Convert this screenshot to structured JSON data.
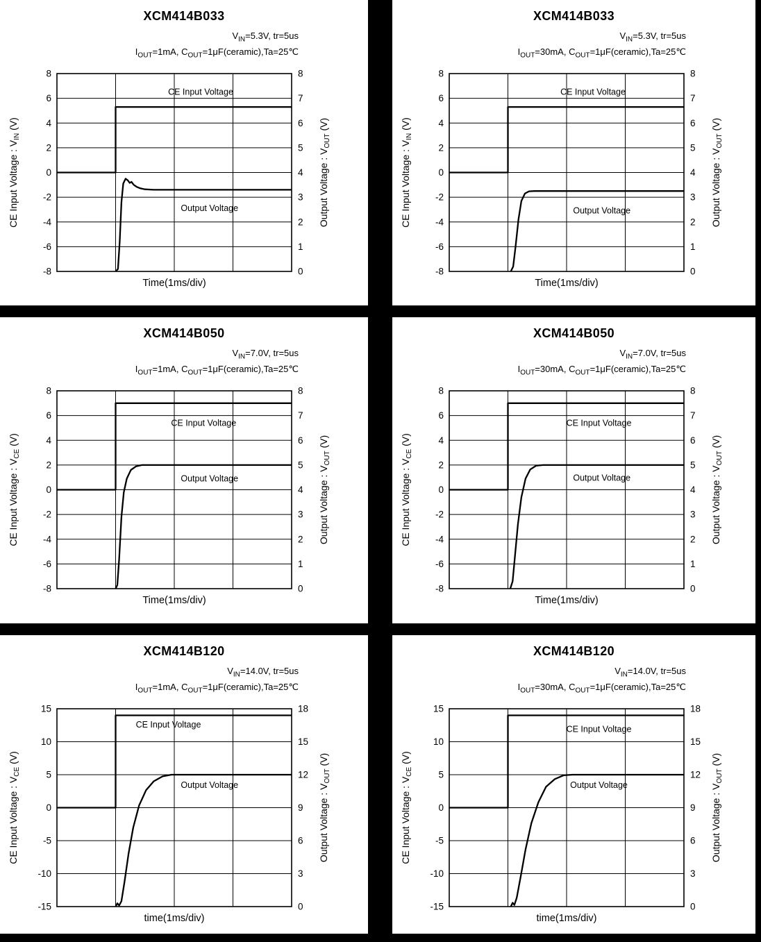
{
  "page": {
    "background": "#000000",
    "panel_background": "#ffffff",
    "trace_color": "#000000"
  },
  "chart_data": [
    {
      "title": "XCM414B033",
      "type": "line",
      "conditions": [
        "V~IN~=5.3V, tr=5us",
        "I~OUT~=1mA, C~OUT~=1μF(ceramic),Ta=25℃"
      ],
      "x_axis": {
        "label": "Time(1ms/div)",
        "divisions": 4,
        "div_unit": "1ms/div"
      },
      "grid_cols": 4,
      "grid_rows": 8,
      "left_axis": {
        "label": "CE Input Voltage : V~IN~ (V)",
        "range": [
          -8,
          8
        ],
        "ticks": [
          8,
          6,
          4,
          2,
          0,
          -2,
          -4,
          -6,
          -8
        ]
      },
      "right_axis": {
        "label": "Output Voltage : V~OUT~ (V)",
        "range": [
          0,
          8
        ],
        "ticks": [
          8,
          7,
          6,
          5,
          4,
          3,
          2,
          1,
          0
        ]
      },
      "series": [
        {
          "name": "CE Input Voltage",
          "axis": "left",
          "label_pos": [
            2.45,
            6.5
          ],
          "points": [
            [
              0,
              0
            ],
            [
              1,
              0
            ],
            [
              1,
              5.3
            ],
            [
              4,
              5.3
            ]
          ]
        },
        {
          "name": "Output Voltage",
          "axis": "right",
          "label_pos": [
            2.6,
            -2.9
          ],
          "points": [
            [
              1.0,
              0
            ],
            [
              1.04,
              0.1
            ],
            [
              1.07,
              1.2
            ],
            [
              1.1,
              2.8
            ],
            [
              1.13,
              3.55
            ],
            [
              1.17,
              3.75
            ],
            [
              1.21,
              3.68
            ],
            [
              1.24,
              3.58
            ],
            [
              1.27,
              3.62
            ],
            [
              1.31,
              3.5
            ],
            [
              1.36,
              3.42
            ],
            [
              1.42,
              3.36
            ],
            [
              1.5,
              3.32
            ],
            [
              1.65,
              3.3
            ],
            [
              4,
              3.3
            ]
          ]
        }
      ]
    },
    {
      "title": "XCM414B033",
      "type": "line",
      "conditions": [
        "V~IN~=5.3V, tr=5us",
        "I~OUT~=30mA, C~OUT~=1μF(ceramic),Ta=25℃"
      ],
      "x_axis": {
        "label": "Time(1ms/div)",
        "divisions": 4,
        "div_unit": "1ms/div"
      },
      "grid_cols": 4,
      "grid_rows": 8,
      "left_axis": {
        "label": "CE Input Voltage : V~IN~ (V)",
        "range": [
          -8,
          8
        ],
        "ticks": [
          8,
          6,
          4,
          2,
          0,
          -2,
          -4,
          -6,
          -8
        ]
      },
      "right_axis": {
        "label": "Output Voltage : V~OUT~ (V)",
        "range": [
          0,
          8
        ],
        "ticks": [
          8,
          7,
          6,
          5,
          4,
          3,
          2,
          1,
          0
        ]
      },
      "series": [
        {
          "name": "CE Input Voltage",
          "axis": "left",
          "label_pos": [
            2.45,
            6.5
          ],
          "points": [
            [
              0,
              0
            ],
            [
              1,
              0
            ],
            [
              1,
              5.3
            ],
            [
              4,
              5.3
            ]
          ]
        },
        {
          "name": "Output Voltage",
          "axis": "right",
          "label_pos": [
            2.6,
            -3.1
          ],
          "points": [
            [
              1.05,
              0
            ],
            [
              1.09,
              0.2
            ],
            [
              1.13,
              1.0
            ],
            [
              1.18,
              2.1
            ],
            [
              1.23,
              2.85
            ],
            [
              1.29,
              3.15
            ],
            [
              1.36,
              3.24
            ],
            [
              1.45,
              3.25
            ],
            [
              4,
              3.25
            ]
          ]
        }
      ]
    },
    {
      "title": "XCM414B050",
      "type": "line",
      "conditions": [
        "V~IN~=7.0V, tr=5us",
        "I~OUT~=1mA, C~OUT~=1μF(ceramic),Ta=25℃"
      ],
      "x_axis": {
        "label": "Time(1ms/div)",
        "divisions": 4,
        "div_unit": "1ms/div"
      },
      "grid_cols": 4,
      "grid_rows": 8,
      "left_axis": {
        "label": "CE Input Voltage : V~CE~ (V)",
        "range": [
          -8,
          8
        ],
        "ticks": [
          8,
          6,
          4,
          2,
          0,
          -2,
          -4,
          -6,
          -8
        ]
      },
      "right_axis": {
        "label": "Output Voltage : V~OUT~ (V)",
        "range": [
          0,
          8
        ],
        "ticks": [
          8,
          7,
          6,
          5,
          4,
          3,
          2,
          1,
          0
        ]
      },
      "series": [
        {
          "name": "CE Input Voltage",
          "axis": "left",
          "label_pos": [
            2.5,
            5.4
          ],
          "points": [
            [
              0,
              0
            ],
            [
              1,
              0
            ],
            [
              1,
              7.0
            ],
            [
              4,
              7.0
            ]
          ]
        },
        {
          "name": "Output Voltage",
          "axis": "right",
          "label_pos": [
            2.6,
            0.9
          ],
          "points": [
            [
              1.0,
              0
            ],
            [
              1.03,
              0.15
            ],
            [
              1.06,
              1.2
            ],
            [
              1.1,
              2.9
            ],
            [
              1.14,
              3.9
            ],
            [
              1.19,
              4.45
            ],
            [
              1.26,
              4.8
            ],
            [
              1.35,
              4.95
            ],
            [
              1.45,
              5.0
            ],
            [
              4,
              5.0
            ]
          ]
        }
      ]
    },
    {
      "title": "XCM414B050",
      "type": "line",
      "conditions": [
        "V~IN~=7.0V, tr=5us",
        "I~OUT~=30mA, C~OUT~=1μF(ceramic),Ta=25℃"
      ],
      "x_axis": {
        "label": "Time(1ms/div)",
        "divisions": 4,
        "div_unit": "1ms/div"
      },
      "grid_cols": 4,
      "grid_rows": 8,
      "left_axis": {
        "label": "CE Input Voltage : V~CE~ (V)",
        "range": [
          -8,
          8
        ],
        "ticks": [
          8,
          6,
          4,
          2,
          0,
          -2,
          -4,
          -6,
          -8
        ]
      },
      "right_axis": {
        "label": "Output Voltage : V~OUT~ (V)",
        "range": [
          0,
          8
        ],
        "ticks": [
          8,
          7,
          6,
          5,
          4,
          3,
          2,
          1,
          0
        ]
      },
      "series": [
        {
          "name": "CE Input Voltage",
          "axis": "left",
          "label_pos": [
            2.55,
            5.4
          ],
          "points": [
            [
              0,
              0
            ],
            [
              1,
              0
            ],
            [
              1,
              7.0
            ],
            [
              4,
              7.0
            ]
          ]
        },
        {
          "name": "Output Voltage",
          "axis": "right",
          "label_pos": [
            2.6,
            0.95
          ],
          "points": [
            [
              1.04,
              0
            ],
            [
              1.08,
              0.3
            ],
            [
              1.12,
              1.3
            ],
            [
              1.17,
              2.6
            ],
            [
              1.23,
              3.7
            ],
            [
              1.3,
              4.45
            ],
            [
              1.38,
              4.82
            ],
            [
              1.48,
              4.97
            ],
            [
              1.6,
              5.0
            ],
            [
              4,
              5.0
            ]
          ]
        }
      ]
    },
    {
      "title": "XCM414B120",
      "type": "line",
      "conditions": [
        "V~IN~=14.0V, tr=5us",
        "I~OUT~=1mA, C~OUT~=1μF(ceramic),Ta=25℃"
      ],
      "x_axis": {
        "label": "time(1ms/div)",
        "divisions": 4,
        "div_unit": "1ms/div"
      },
      "grid_cols": 4,
      "grid_rows": 6,
      "left_axis": {
        "label": "CE Input Voltage : V~CE~ (V)",
        "range": [
          -15,
          15
        ],
        "ticks": [
          15,
          10,
          5,
          0,
          -5,
          -10,
          -15
        ]
      },
      "right_axis": {
        "label": "Output Voltage : V~OUT~ (V)",
        "range": [
          0,
          18
        ],
        "ticks": [
          18,
          15,
          12,
          9,
          6,
          3,
          0
        ]
      },
      "series": [
        {
          "name": "CE Input Voltage",
          "axis": "left",
          "label_pos": [
            1.9,
            12.6
          ],
          "points": [
            [
              0,
              0
            ],
            [
              1,
              0
            ],
            [
              1,
              14.0
            ],
            [
              4,
              14.0
            ]
          ]
        },
        {
          "name": "Output Voltage",
          "axis": "right",
          "label_pos": [
            2.6,
            3.4
          ],
          "points": [
            [
              1.0,
              0
            ],
            [
              1.03,
              0.3
            ],
            [
              1.06,
              0.1
            ],
            [
              1.1,
              0.5
            ],
            [
              1.15,
              2.2
            ],
            [
              1.22,
              4.8
            ],
            [
              1.3,
              7.2
            ],
            [
              1.4,
              9.2
            ],
            [
              1.52,
              10.6
            ],
            [
              1.65,
              11.4
            ],
            [
              1.8,
              11.85
            ],
            [
              1.95,
              12.0
            ],
            [
              4,
              12.0
            ]
          ]
        }
      ]
    },
    {
      "title": "XCM414B120",
      "type": "line",
      "conditions": [
        "V~IN~=14.0V, tr=5us",
        "I~OUT~=30mA, C~OUT~=1μF(ceramic),Ta=25℃"
      ],
      "x_axis": {
        "label": "time(1ms/div)",
        "divisions": 4,
        "div_unit": "1ms/div"
      },
      "grid_cols": 4,
      "grid_rows": 6,
      "left_axis": {
        "label": "CE Input Voltage : V~CE~ (V)",
        "range": [
          -15,
          15
        ],
        "ticks": [
          15,
          10,
          5,
          0,
          -5,
          -10,
          -15
        ]
      },
      "right_axis": {
        "label": "Output Voltage : V~OUT~ (V)",
        "range": [
          0,
          18
        ],
        "ticks": [
          18,
          15,
          12,
          9,
          6,
          3,
          0
        ]
      },
      "series": [
        {
          "name": "CE Input Voltage",
          "axis": "left",
          "label_pos": [
            2.55,
            11.9
          ],
          "points": [
            [
              0,
              0
            ],
            [
              1,
              0
            ],
            [
              1,
              14.0
            ],
            [
              4,
              14.0
            ]
          ]
        },
        {
          "name": "Output Voltage",
          "axis": "right",
          "label_pos": [
            2.55,
            3.4
          ],
          "points": [
            [
              1.05,
              0
            ],
            [
              1.08,
              0.35
            ],
            [
              1.11,
              0.15
            ],
            [
              1.15,
              0.8
            ],
            [
              1.22,
              2.8
            ],
            [
              1.3,
              5.2
            ],
            [
              1.4,
              7.6
            ],
            [
              1.52,
              9.5
            ],
            [
              1.65,
              10.9
            ],
            [
              1.8,
              11.6
            ],
            [
              1.95,
              11.95
            ],
            [
              2.1,
              12.0
            ],
            [
              4,
              12.0
            ]
          ]
        }
      ]
    }
  ]
}
